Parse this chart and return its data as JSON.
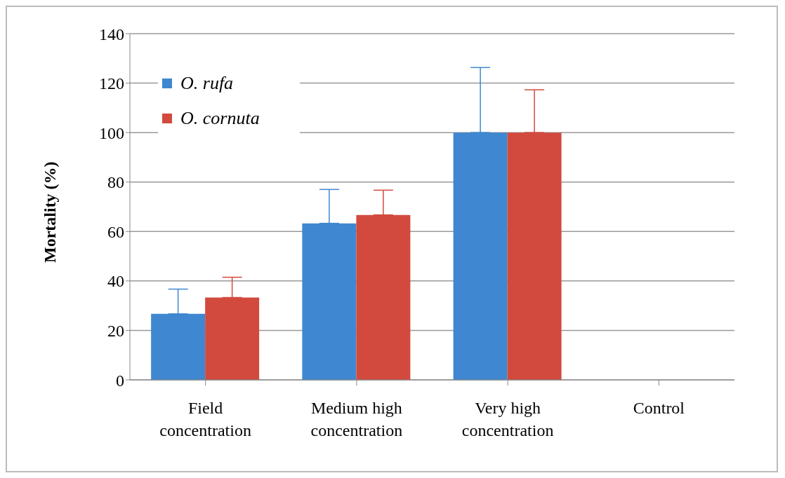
{
  "chart_data": {
    "type": "bar",
    "ylabel": "Mortality (%)",
    "categories": [
      "Field concentration",
      "Medium high concentration",
      "Very high concentration",
      "Control"
    ],
    "series": [
      {
        "name": "O. rufa",
        "color": "#3f87d0",
        "values": [
          26.7,
          63.3,
          100,
          0
        ],
        "errors": [
          [
            26.7,
            36.7
          ],
          [
            63.3,
            77
          ],
          [
            100,
            126.3
          ],
          null
        ]
      },
      {
        "name": "O. cornuta",
        "color": "#d24a3e",
        "values": [
          33.3,
          66.7,
          100,
          0
        ],
        "errors": [
          [
            33.3,
            41.5
          ],
          [
            66.7,
            76.7
          ],
          [
            100,
            117.3
          ],
          null
        ]
      }
    ],
    "ylim": [
      0,
      140
    ],
    "yticks": [
      0,
      20,
      40,
      60,
      80,
      100,
      120,
      140
    ],
    "grid": "y",
    "legend": "top left"
  }
}
